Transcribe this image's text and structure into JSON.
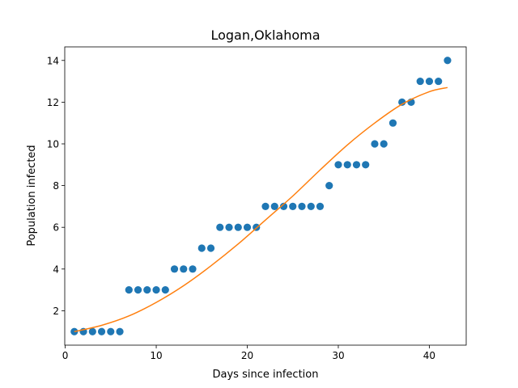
{
  "chart_data": {
    "type": "scatter",
    "title": "Logan,Oklahoma",
    "xlabel": "Days since infection",
    "ylabel": "Population infected",
    "xlim": [
      -0.05,
      44.05
    ],
    "ylim": [
      0.35,
      14.65
    ],
    "xticks": [
      0,
      10,
      20,
      30,
      40
    ],
    "yticks": [
      2,
      4,
      6,
      8,
      10,
      12,
      14
    ],
    "grid": false,
    "series": [
      {
        "kind": "scatter",
        "color": "#1f77b4",
        "x": [
          1,
          2,
          3,
          4,
          5,
          6,
          7,
          8,
          9,
          10,
          11,
          12,
          13,
          14,
          15,
          16,
          17,
          18,
          19,
          20,
          21,
          22,
          23,
          24,
          25,
          26,
          27,
          28,
          29,
          30,
          31,
          32,
          33,
          34,
          35,
          36,
          37,
          38,
          39,
          40,
          41,
          42
        ],
        "y": [
          1,
          1,
          1,
          1,
          1,
          1,
          3,
          3,
          3,
          3,
          3,
          4,
          4,
          4,
          5,
          5,
          6,
          6,
          6,
          6,
          6,
          7,
          7,
          7,
          7,
          7,
          7,
          7,
          8,
          9,
          9,
          9,
          9,
          10,
          10,
          11,
          12,
          12,
          13,
          13,
          13,
          14
        ]
      },
      {
        "kind": "line",
        "color": "#ff7f0e",
        "x": [
          1,
          4,
          7,
          10,
          13,
          16,
          19,
          22,
          25,
          28,
          31,
          34,
          37,
          40,
          42
        ],
        "y": [
          1.0,
          1.3,
          1.75,
          2.4,
          3.2,
          4.15,
          5.2,
          6.35,
          7.5,
          8.75,
          9.95,
          11.0,
          11.9,
          12.5,
          12.7
        ]
      }
    ]
  }
}
